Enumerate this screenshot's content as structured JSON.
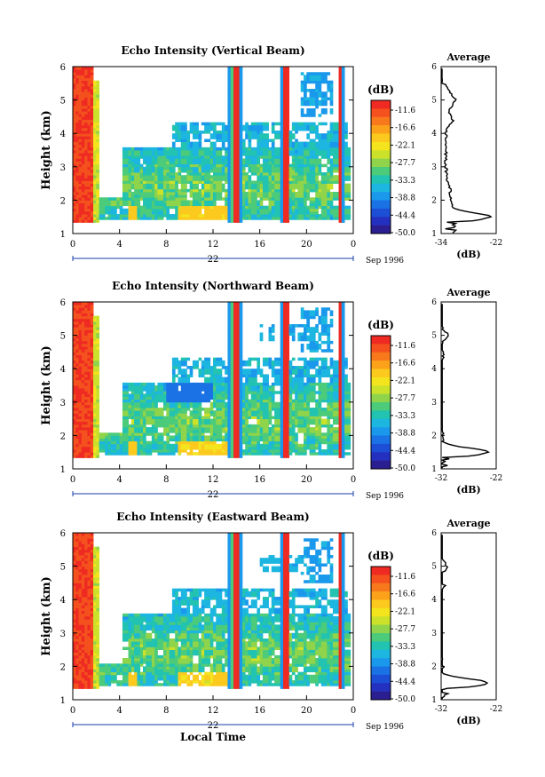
{
  "chart_data": [
    {
      "type": "heatmap",
      "title": "Echo Intensity (Vertical Beam)",
      "xlabel": "",
      "ylabel": "Height (km)",
      "xlim": [
        0,
        24
      ],
      "ylim": [
        1,
        6
      ],
      "x_ticks": [
        "0",
        "4",
        "8",
        "12",
        "16",
        "20",
        "0"
      ],
      "y_ticks": [
        "1",
        "2",
        "3",
        "4",
        "5",
        "6"
      ],
      "date_label": "22",
      "month_label": "Sep 1996",
      "colorbar": {
        "unit": "(dB)",
        "tick_labels": [
          "-11.6",
          "-16.6",
          "-22.1",
          "-27.7",
          "-33.3",
          "-38.8",
          "-44.4",
          "-50.0"
        ],
        "colors": [
          "#ee2a22",
          "#f4511e",
          "#f8791c",
          "#fba21a",
          "#fcc91e",
          "#f4e41e",
          "#cbe12a",
          "#8fd44a",
          "#4ccb7a",
          "#22c3b0",
          "#1cb6e0",
          "#1a98ec",
          "#1a72e4",
          "#1d4ed6",
          "#2430c0",
          "#2a1e90"
        ]
      },
      "average_profile": {
        "title": "Average",
        "xlabel": "(dB)",
        "x_ticks": [
          "-34",
          "-22"
        ],
        "xlim": [
          -34,
          -22
        ],
        "ylim": [
          1,
          6
        ],
        "y_ticks": [
          "1",
          "2",
          "3",
          "4",
          "5",
          "6"
        ]
      }
    },
    {
      "type": "heatmap",
      "title": "Echo Intensity (Northward Beam)",
      "xlabel": "",
      "ylabel": "Height (km)",
      "xlim": [
        0,
        24
      ],
      "ylim": [
        1,
        6
      ],
      "x_ticks": [
        "0",
        "4",
        "8",
        "12",
        "16",
        "20",
        "0"
      ],
      "y_ticks": [
        "1",
        "2",
        "3",
        "4",
        "5",
        "6"
      ],
      "date_label": "22",
      "month_label": "Sep 1996",
      "colorbar": {
        "unit": "(dB)",
        "tick_labels": [
          "-11.6",
          "-16.6",
          "-22.1",
          "-27.7",
          "-33.3",
          "-38.8",
          "-44.4",
          "-50.0"
        ],
        "colors": [
          "#ee2a22",
          "#f4511e",
          "#f8791c",
          "#fba21a",
          "#fcc91e",
          "#f4e41e",
          "#cbe12a",
          "#8fd44a",
          "#4ccb7a",
          "#22c3b0",
          "#1cb6e0",
          "#1a98ec",
          "#1a72e4",
          "#1d4ed6",
          "#2430c0",
          "#2a1e90"
        ]
      },
      "average_profile": {
        "title": "Average",
        "xlabel": "(dB)",
        "x_ticks": [
          "-32",
          "-22"
        ],
        "xlim": [
          -32,
          -22
        ],
        "ylim": [
          1,
          6
        ],
        "y_ticks": [
          "1",
          "2",
          "3",
          "4",
          "5",
          "6"
        ]
      }
    },
    {
      "type": "heatmap",
      "title": "Echo Intensity (Eastward Beam)",
      "xlabel": "Local Time",
      "ylabel": "Height (km)",
      "xlim": [
        0,
        24
      ],
      "ylim": [
        1,
        6
      ],
      "x_ticks": [
        "0",
        "4",
        "8",
        "12",
        "16",
        "20",
        "0"
      ],
      "y_ticks": [
        "1",
        "2",
        "3",
        "4",
        "5",
        "6"
      ],
      "date_label": "22",
      "month_label": "Sep 1996",
      "colorbar": {
        "unit": "(dB)",
        "tick_labels": [
          "-11.6",
          "-16.6",
          "-22.1",
          "-27.7",
          "-33.3",
          "-38.8",
          "-44.4",
          "-50.0"
        ],
        "colors": [
          "#ee2a22",
          "#f4511e",
          "#f8791c",
          "#fba21a",
          "#fcc91e",
          "#f4e41e",
          "#cbe12a",
          "#8fd44a",
          "#4ccb7a",
          "#22c3b0",
          "#1cb6e0",
          "#1a98ec",
          "#1a72e4",
          "#1d4ed6",
          "#2430c0",
          "#2a1e90"
        ]
      },
      "average_profile": {
        "title": "Average",
        "xlabel": "(dB)",
        "x_ticks": [
          "-32",
          "-22"
        ],
        "xlim": [
          -32,
          -22
        ],
        "ylim": [
          1,
          6
        ],
        "y_ticks": [
          "1",
          "2",
          "3",
          "4",
          "5",
          "6"
        ]
      }
    }
  ]
}
